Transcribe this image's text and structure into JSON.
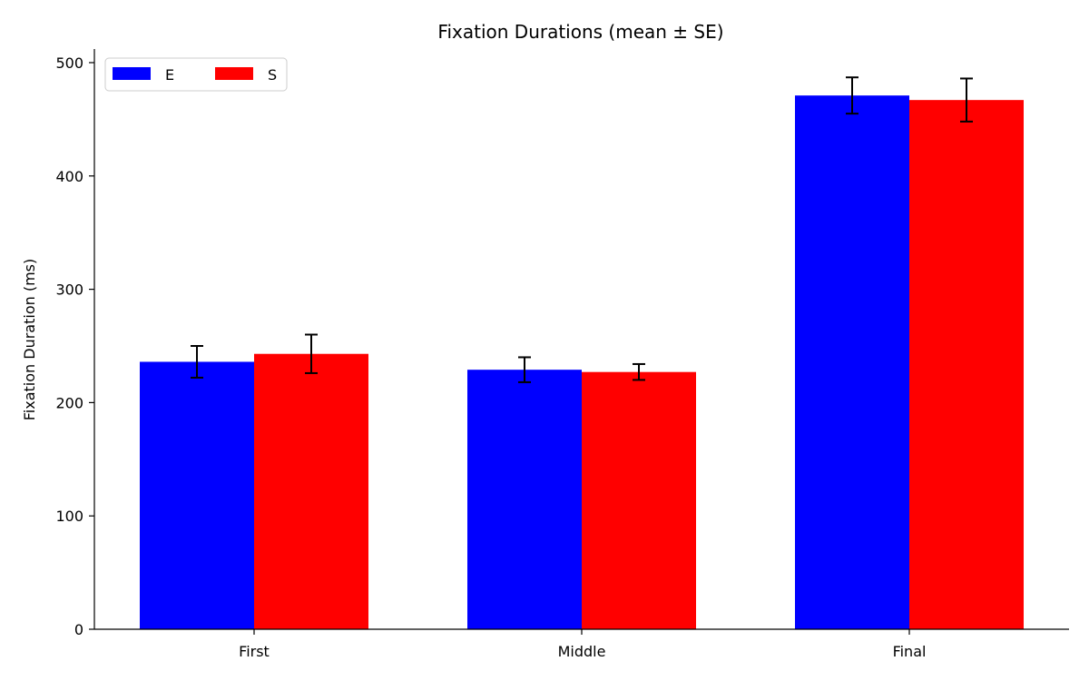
{
  "chart_data": {
    "type": "bar",
    "title": "Fixation Durations (mean ± SE)",
    "xlabel": "",
    "ylabel": "Fixation Duration (ms)",
    "categories": [
      "First",
      "Middle",
      "Final"
    ],
    "series": [
      {
        "name": "E",
        "color": "#0000ff",
        "values": [
          236,
          229,
          471
        ],
        "errors": [
          14,
          11,
          16
        ]
      },
      {
        "name": "S",
        "color": "#ff0000",
        "values": [
          243,
          227,
          467
        ],
        "errors": [
          17,
          7,
          19
        ]
      }
    ],
    "ylim": [
      0,
      512
    ],
    "yticks": [
      0,
      100,
      200,
      300,
      400,
      500
    ],
    "grid": false,
    "legend": {
      "position": "top-left",
      "columns": 2
    }
  }
}
